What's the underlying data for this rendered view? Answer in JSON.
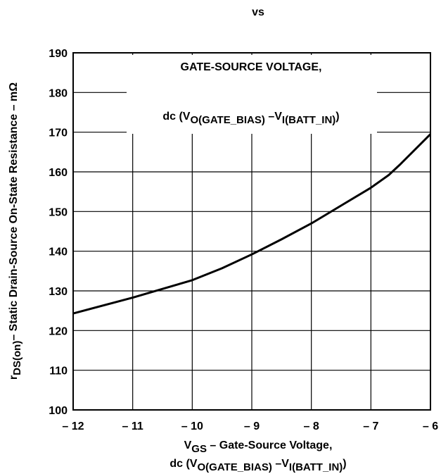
{
  "chart_data": {
    "type": "line",
    "title": "vs",
    "annotations": [
      {
        "parts": [
          "GATE-SOURCE VOLTAGE,"
        ]
      },
      {
        "parts": [
          "dc (V",
          "O(GATE_BIAS)",
          " –V",
          "I(BATT_IN)",
          ")"
        ]
      }
    ],
    "x_label": [
      {
        "parts": [
          "V",
          "GS",
          " – Gate-Source Voltage,"
        ]
      },
      {
        "parts": [
          "dc (V",
          "O(GATE_BIAS)",
          " –V",
          "I(BATT_IN)",
          ")"
        ]
      }
    ],
    "y_label": {
      "parts": [
        "r",
        "DS(on)",
        "– Static Drain-Source On-State Resistance – mΩ"
      ]
    },
    "x": [
      -12,
      -11,
      -10.5,
      -10,
      -9.5,
      -9,
      -8.5,
      -8,
      -7.5,
      -7,
      -6.7,
      -6.5,
      -6
    ],
    "series": [
      {
        "name": "rDS(on)",
        "color": "#000000",
        "values": [
          124.3,
          128.3,
          130.5,
          132.7,
          135.7,
          139.2,
          143,
          147,
          151.5,
          156,
          159.2,
          162,
          169.5
        ]
      }
    ],
    "xlim": [
      -12,
      -6
    ],
    "xticks": [
      {
        "value": -12,
        "label": "– 12"
      },
      {
        "value": -11,
        "label": "– 11"
      },
      {
        "value": -10,
        "label": "– 10"
      },
      {
        "value": -9,
        "label": "– 9"
      },
      {
        "value": -8,
        "label": "– 8"
      },
      {
        "value": -7,
        "label": "– 7"
      },
      {
        "value": -6,
        "label": "– 6"
      }
    ],
    "ylim": [
      100,
      190
    ],
    "yticks": [
      100,
      110,
      120,
      130,
      140,
      150,
      160,
      170,
      180,
      190
    ],
    "grid": true
  }
}
